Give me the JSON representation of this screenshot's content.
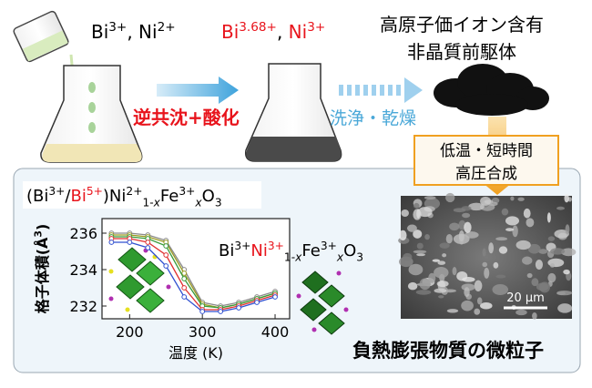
{
  "labels": {
    "reactants": {
      "parts": [
        {
          "t": "Bi"
        },
        {
          "t": "3+",
          "pos": "sup"
        },
        {
          "t": ", Ni"
        },
        {
          "t": "2+",
          "pos": "sup"
        }
      ]
    },
    "oxidized": {
      "parts": [
        {
          "t": "Bi",
          "color": "#e8141c"
        },
        {
          "t": "3.68+",
          "pos": "sup",
          "color": "#e8141c"
        },
        {
          "t": ", "
        },
        {
          "t": "Ni",
          "color": "#e8141c"
        },
        {
          "t": "3+",
          "pos": "sup",
          "color": "#e8141c"
        }
      ]
    },
    "precursor": {
      "lines": [
        "高原子価イオン含有",
        "非晶質前駆体"
      ]
    },
    "coprecipitation": "逆共沈+酸化",
    "washing": "洗浄・乾燥",
    "synthesis": {
      "lines": [
        "低温・短時間",
        "高圧合成"
      ]
    },
    "formula_low_t": {
      "parts": [
        {
          "t": "(Bi"
        },
        {
          "t": "3+",
          "pos": "sup"
        },
        {
          "t": "/"
        },
        {
          "t": "Bi",
          "color": "#e8141c"
        },
        {
          "t": "5+",
          "pos": "sup",
          "color": "#e8141c"
        },
        {
          "t": ")Ni"
        },
        {
          "t": "2+",
          "pos": "sup"
        },
        {
          "t": "1-",
          "pos": "sub"
        },
        {
          "t": "x",
          "pos": "sub",
          "italic": true
        },
        {
          "t": "Fe"
        },
        {
          "t": "3+",
          "pos": "sup"
        },
        {
          "t": "x",
          "pos": "sub",
          "italic": true
        },
        {
          "t": "O"
        },
        {
          "t": "3",
          "pos": "sub"
        }
      ]
    },
    "formula_high_t": {
      "parts": [
        {
          "t": "Bi"
        },
        {
          "t": "3+",
          "pos": "sup"
        },
        {
          "t": "Ni",
          "color": "#e8141c"
        },
        {
          "t": "3+",
          "pos": "sup",
          "color": "#e8141c"
        },
        {
          "t": "1-",
          "pos": "sub"
        },
        {
          "t": "x",
          "pos": "sub",
          "italic": true
        },
        {
          "t": "Fe"
        },
        {
          "t": "3+",
          "pos": "sup"
        },
        {
          "t": "x",
          "pos": "sub",
          "italic": true
        },
        {
          "t": "O"
        },
        {
          "t": "3",
          "pos": "sub"
        }
      ]
    },
    "product": "負熱膨張物質の微粒子",
    "scale_bar": "20 μm"
  },
  "chart_data": {
    "type": "line",
    "xlabel": "温度 (K)",
    "ylabel": {
      "parts": [
        {
          "t": "格子体積(Å"
        },
        {
          "t": "3",
          "pos": "sup"
        },
        {
          "t": ")"
        }
      ]
    },
    "x": [
      175,
      200,
      225,
      250,
      275,
      300,
      325,
      350,
      375,
      400
    ],
    "series": [
      {
        "color": "#8a8a8a",
        "values": [
          236.0,
          236.0,
          235.9,
          235.6,
          234.0,
          232.2,
          232.0,
          232.2,
          232.5,
          232.8
        ]
      },
      {
        "color": "#9a9a20",
        "values": [
          235.9,
          235.9,
          235.8,
          235.5,
          233.8,
          232.1,
          231.9,
          232.1,
          232.4,
          232.7
        ]
      },
      {
        "color": "#3a9a3a",
        "values": [
          235.8,
          235.8,
          235.7,
          235.3,
          233.5,
          232.0,
          231.9,
          232.1,
          232.4,
          232.7
        ]
      },
      {
        "color": "#e03030",
        "values": [
          235.7,
          235.7,
          235.5,
          234.8,
          233.0,
          231.8,
          231.8,
          232.0,
          232.3,
          232.6
        ]
      },
      {
        "color": "#3050d0",
        "values": [
          235.5,
          235.5,
          235.2,
          234.2,
          232.5,
          231.7,
          231.7,
          231.9,
          232.2,
          232.5
        ]
      }
    ],
    "xlim": [
      162,
      420
    ],
    "ylim": [
      231.3,
      236.8
    ],
    "xticks": [
      200,
      300,
      400
    ],
    "yticks": [
      232,
      234,
      236
    ],
    "markers": "open-circle"
  }
}
